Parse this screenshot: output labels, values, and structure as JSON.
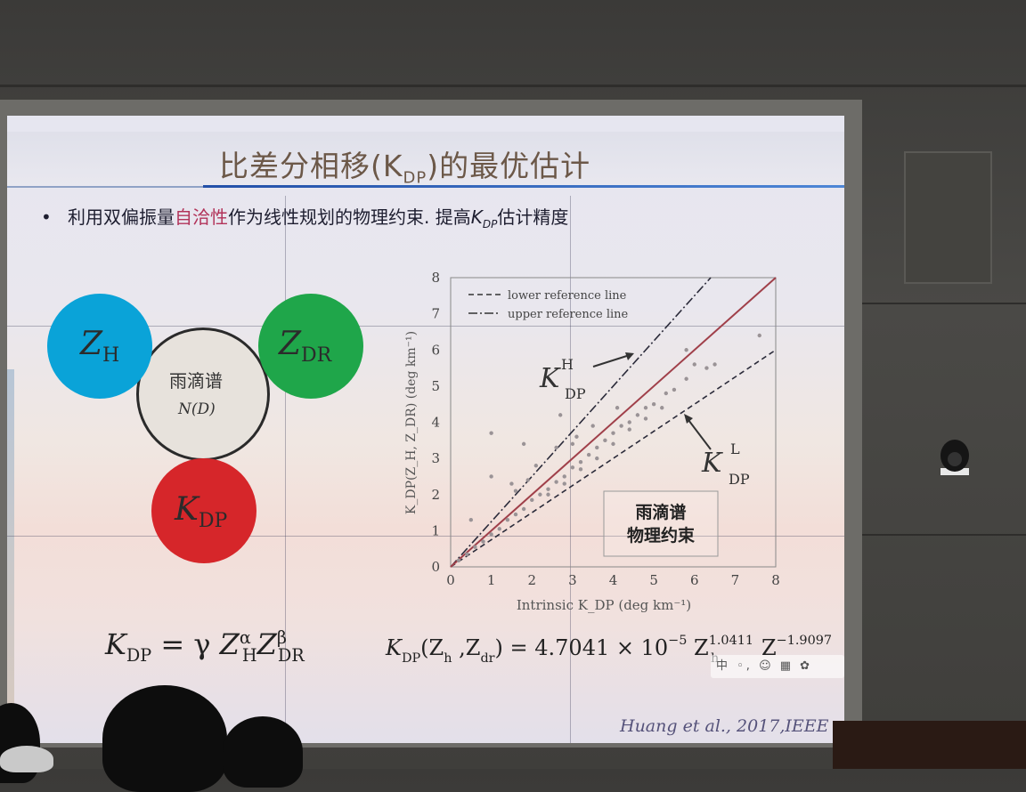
{
  "slide": {
    "title": "比差分相移(K",
    "title_sub": "DP",
    "title_tail": ")的最优估计",
    "bullet_dot": "•",
    "bullet_a": "利用双偏振量",
    "bullet_red": "自洽性",
    "bullet_b": "作为线性规划的物理约束. 提高",
    "bullet_k": "K",
    "bullet_k_sub": "DP",
    "bullet_c": "估计精度"
  },
  "diagram": {
    "zh_label": "Z",
    "zh_sub": "H",
    "zdr_label": "Z",
    "zdr_sub": "DR",
    "kdp_label": "K",
    "kdp_sub": "DP",
    "center_label": "雨滴谱",
    "center_nd": "N(D)"
  },
  "formulas": {
    "left_lhs": "K",
    "left_lhs_sub": "DP",
    "left_eq": " = γ ",
    "left_z1": "Z",
    "left_z1_sup": "α",
    "left_z1_sub": "H",
    "left_z2": "Z",
    "left_z2_sup": "β",
    "left_z2_sub": "DR",
    "right_lhs": "K",
    "right_lhs_sub": "DP",
    "right_args": "(Z",
    "right_args_sub1": "h",
    "right_args_mid": " ,Z",
    "right_args_sub2": "dr",
    "right_args_end": ") = 4.7041 × 10",
    "right_exp": "−5",
    "right_z1": " Z",
    "right_z1_sup": "1.0411",
    "right_z1_sub": "h",
    "right_z2": " Z",
    "right_z2_sup": "−1.9097"
  },
  "citation": "Huang et al., 2017,IEEE",
  "ime_toolbar": "中 ◦, ☺ ▦ ✿",
  "chart_data": {
    "type": "scatter",
    "xlabel": "Intrinsic K_DP (deg km⁻¹)",
    "ylabel": "K_DP(Z_H, Z_DR) (deg km⁻¹)",
    "xlim": [
      0,
      8
    ],
    "ylim": [
      0,
      8
    ],
    "x_ticks": [
      0,
      1,
      2,
      3,
      4,
      5,
      6,
      7,
      8
    ],
    "y_ticks": [
      0,
      1,
      2,
      3,
      4,
      5,
      6,
      7,
      8
    ],
    "legend": [
      "lower reference line",
      "upper reference line"
    ],
    "lines": [
      {
        "name": "lower reference line",
        "style": "dashed",
        "slope": 0.75
      },
      {
        "name": "upper reference line",
        "style": "dashdot",
        "slope": 1.25
      },
      {
        "name": "1:1 line",
        "style": "solid",
        "slope": 1.0
      }
    ],
    "annotations": {
      "upper": "K",
      "upper_sup": "H",
      "upper_sub": "DP",
      "lower": "K",
      "lower_sup": "L",
      "lower_sub": "DP",
      "box_line1": "雨滴谱",
      "box_line2": "物理约束"
    },
    "points": [
      [
        0.2,
        0.18
      ],
      [
        0.4,
        0.35
      ],
      [
        0.6,
        0.55
      ],
      [
        0.8,
        0.7
      ],
      [
        1.0,
        0.9
      ],
      [
        1.2,
        1.05
      ],
      [
        1.4,
        1.3
      ],
      [
        1.6,
        1.45
      ],
      [
        1.8,
        1.6
      ],
      [
        2.0,
        1.85
      ],
      [
        2.2,
        2.0
      ],
      [
        2.4,
        2.15
      ],
      [
        2.6,
        2.35
      ],
      [
        2.8,
        2.5
      ],
      [
        3.0,
        2.75
      ],
      [
        3.2,
        2.9
      ],
      [
        3.4,
        3.1
      ],
      [
        3.6,
        3.3
      ],
      [
        3.8,
        3.5
      ],
      [
        4.0,
        3.7
      ],
      [
        4.2,
        3.9
      ],
      [
        4.4,
        4.0
      ],
      [
        4.6,
        4.2
      ],
      [
        4.8,
        4.4
      ],
      [
        5.0,
        4.5
      ],
      [
        5.3,
        4.8
      ],
      [
        5.5,
        4.9
      ],
      [
        5.8,
        5.2
      ],
      [
        6.0,
        5.6
      ],
      [
        6.3,
        5.5
      ],
      [
        6.5,
        5.6
      ],
      [
        7.6,
        6.4
      ],
      [
        2.1,
        2.8
      ],
      [
        2.6,
        3.3
      ],
      [
        3.0,
        3.4
      ],
      [
        2.4,
        2.0
      ],
      [
        2.8,
        2.3
      ],
      [
        3.2,
        2.7
      ],
      [
        3.6,
        3.0
      ],
      [
        4.0,
        3.4
      ],
      [
        4.4,
        3.8
      ],
      [
        4.8,
        4.1
      ],
      [
        5.2,
        4.4
      ],
      [
        1.6,
        2.1
      ],
      [
        1.9,
        2.4
      ],
      [
        0.5,
        1.3
      ],
      [
        1.0,
        2.5
      ],
      [
        1.5,
        2.3
      ],
      [
        1.0,
        3.7
      ],
      [
        1.8,
        3.4
      ],
      [
        2.7,
        4.2
      ],
      [
        3.1,
        3.6
      ],
      [
        3.5,
        3.9
      ],
      [
        4.1,
        4.4
      ],
      [
        5.8,
        6.0
      ]
    ]
  }
}
